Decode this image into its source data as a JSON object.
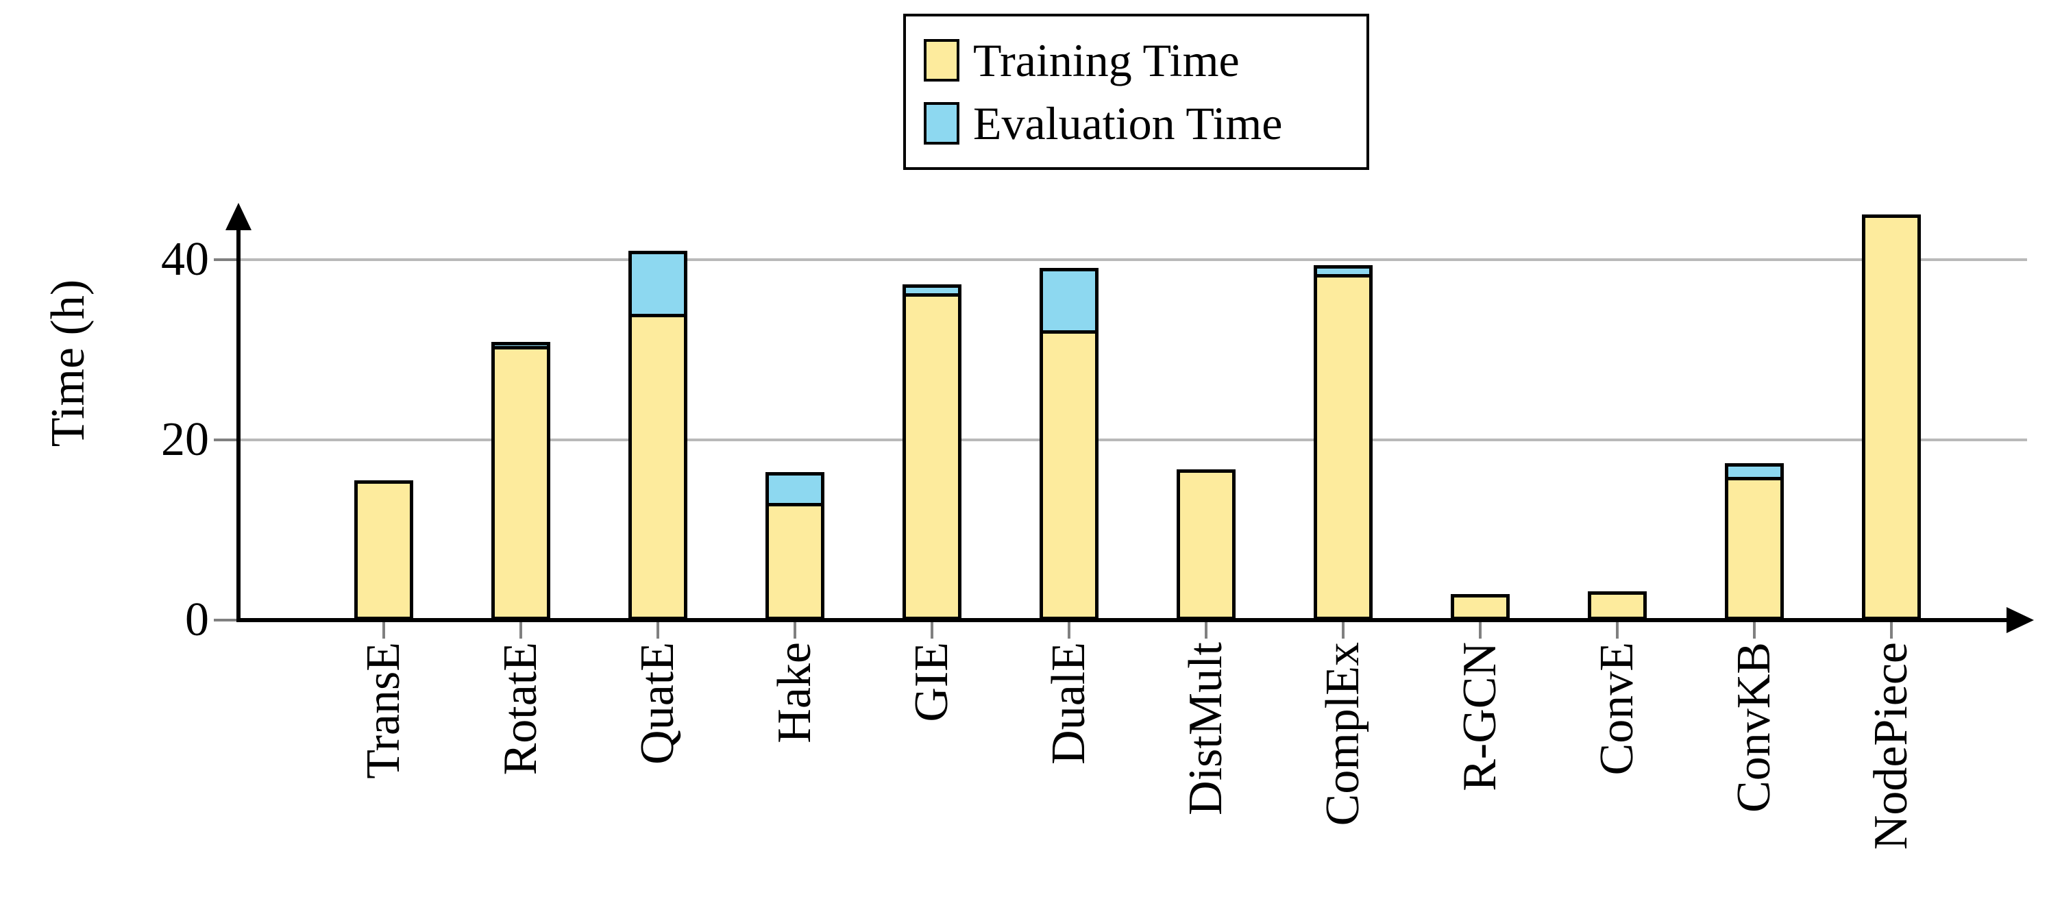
{
  "chart_data": {
    "type": "bar",
    "stacked": true,
    "title": "",
    "xlabel": "",
    "ylabel": "Time (h)",
    "ylim": [
      0,
      46
    ],
    "yticks": [
      0,
      20,
      40
    ],
    "grid": "horizontal-gridlines-at-20-and-40",
    "legend_position": "top-center",
    "categories": [
      "TransE",
      "RotatE",
      "QuatE",
      "Hake",
      "GIE",
      "DualE",
      "DistMult",
      "ComplEx",
      "R-GCN",
      "ConvE",
      "ConvKB",
      "NodePiece"
    ],
    "series": [
      {
        "name": "Training Time",
        "color": "#FDEB9D",
        "values": [
          15.5,
          30.4,
          34.0,
          13.0,
          36.3,
          32.2,
          16.7,
          38.4,
          2.9,
          3.2,
          15.9,
          45.0
        ]
      },
      {
        "name": "Evaluation Time",
        "color": "#8DD8F0",
        "values": [
          0,
          0.5,
          7.0,
          3.4,
          1.0,
          6.9,
          0,
          1.0,
          0,
          0,
          1.5,
          0
        ]
      }
    ],
    "totals": [
      15.5,
      30.9,
      41.0,
      16.4,
      37.3,
      39.1,
      16.7,
      39.4,
      2.9,
      3.2,
      17.4,
      45.0
    ],
    "colors": {
      "bar_border": "#000000",
      "gridline": "#b9b9b9",
      "tick": "#808080",
      "axis": "#000000",
      "background": "#ffffff"
    }
  }
}
